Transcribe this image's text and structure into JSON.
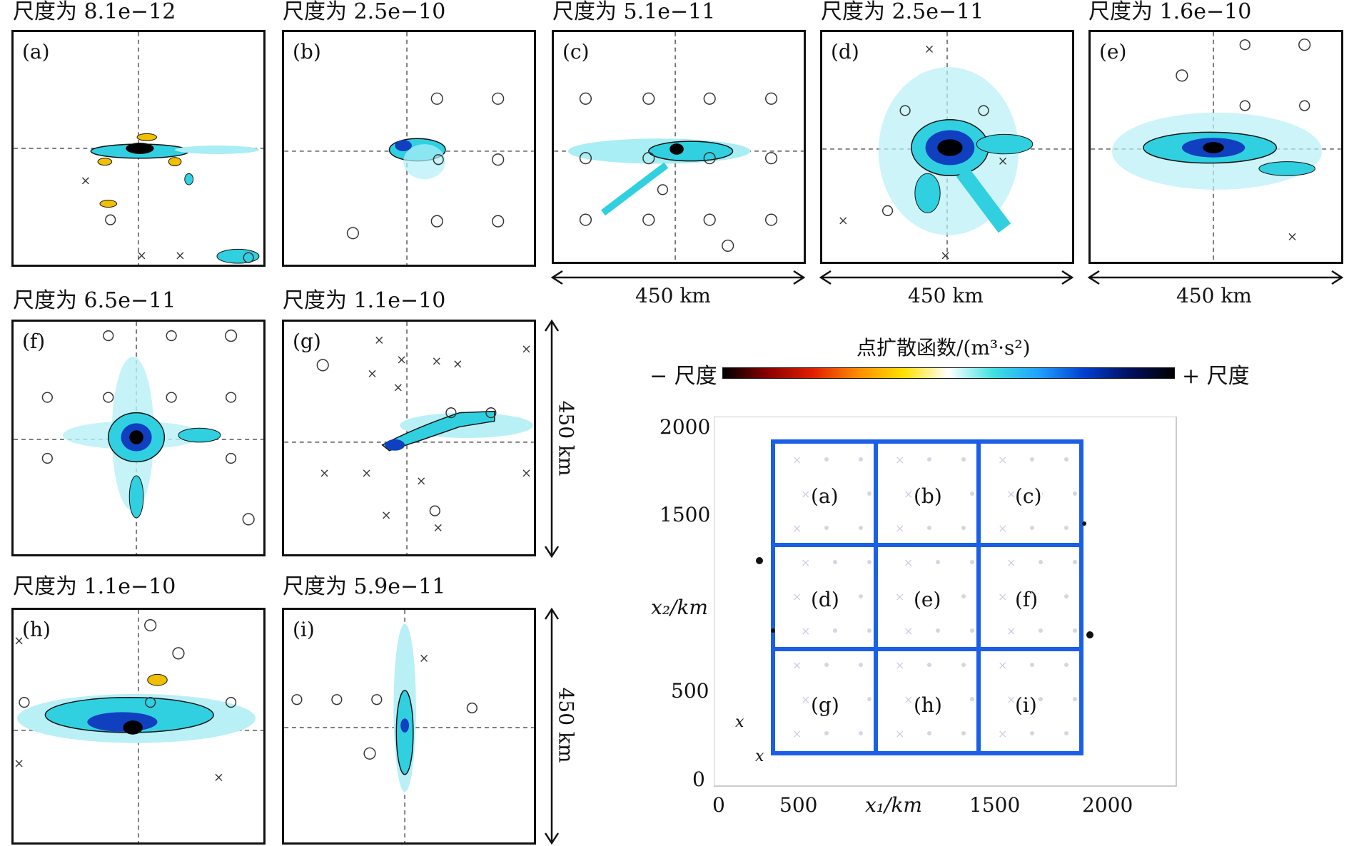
{
  "panels": [
    {
      "id": "a",
      "letter": "(a)",
      "title": "尺度为 8.1e−12"
    },
    {
      "id": "b",
      "letter": "(b)",
      "title": "尺度为 2.5e−10"
    },
    {
      "id": "c",
      "letter": "(c)",
      "title": "尺度为 5.1e−11"
    },
    {
      "id": "d",
      "letter": "(d)",
      "title": "尺度为 2.5e−11"
    },
    {
      "id": "e",
      "letter": "(e)",
      "title": "尺度为 1.6e−10"
    },
    {
      "id": "f",
      "letter": "(f)",
      "title": "尺度为 6.5e−11"
    },
    {
      "id": "g",
      "letter": "(g)",
      "title": "尺度为 1.1e−10"
    },
    {
      "id": "h",
      "letter": "(h)",
      "title": "尺度为 1.1e−10"
    },
    {
      "id": "i",
      "letter": "(i)",
      "title": "尺度为 5.9e−11"
    }
  ],
  "scale": {
    "label": "450 km"
  },
  "colorbar": {
    "title": "点扩散函数/(m³·s²)",
    "neg_label": "− 尺度",
    "pos_label": "+ 尺度",
    "neg_colors": [
      "#000000",
      "#8b0000",
      "#e02000",
      "#ff8c00",
      "#ffe000",
      "#ffffff"
    ],
    "pos_colors": [
      "#ffffff",
      "#40e0e0",
      "#20a0ff",
      "#0040d0",
      "#001060",
      "#000000"
    ]
  },
  "map": {
    "xlabel": "x₁/km",
    "ylabel": "x₂/km",
    "xticks": [
      "0",
      "500",
      "1500",
      "2000"
    ],
    "yticks": [
      "2000",
      "1500",
      "500",
      "0"
    ],
    "cells": [
      "(a)",
      "(b)",
      "(c)",
      "(d)",
      "(e)",
      "(f)",
      "(g)",
      "(h)",
      "(i)"
    ],
    "grid_color": "#1a5fe6",
    "station_marks": [
      "x",
      "x"
    ]
  },
  "colors": {
    "contour_blue": "#1ec8e0",
    "deep_blue": "#1040c0",
    "yellow": "#f0c000",
    "red": "#e03000"
  }
}
